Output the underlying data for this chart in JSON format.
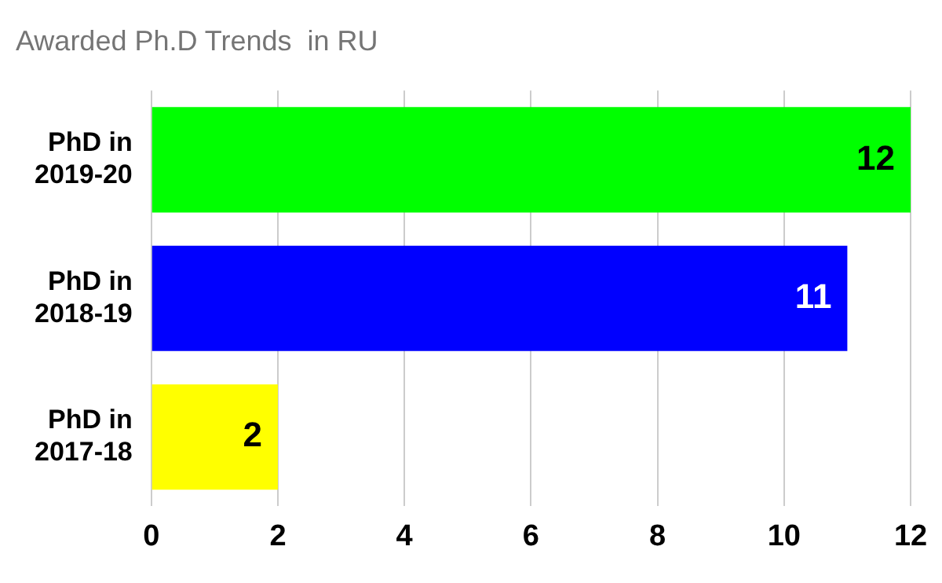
{
  "chart_data": {
    "type": "bar",
    "orientation": "horizontal",
    "title": "Awarded Ph.D Trends  in RU",
    "categories": [
      "PhD in\n2019-20",
      "PhD in\n2018-19",
      "PhD in\n2017-18"
    ],
    "values": [
      12,
      11,
      2
    ],
    "colors": [
      "#00ff00",
      "#0000ff",
      "#ffff00"
    ],
    "xlim": [
      0,
      12
    ],
    "xticks": [
      0,
      2,
      4,
      6,
      8,
      10,
      12
    ],
    "grid": "x",
    "data_labels": true
  }
}
